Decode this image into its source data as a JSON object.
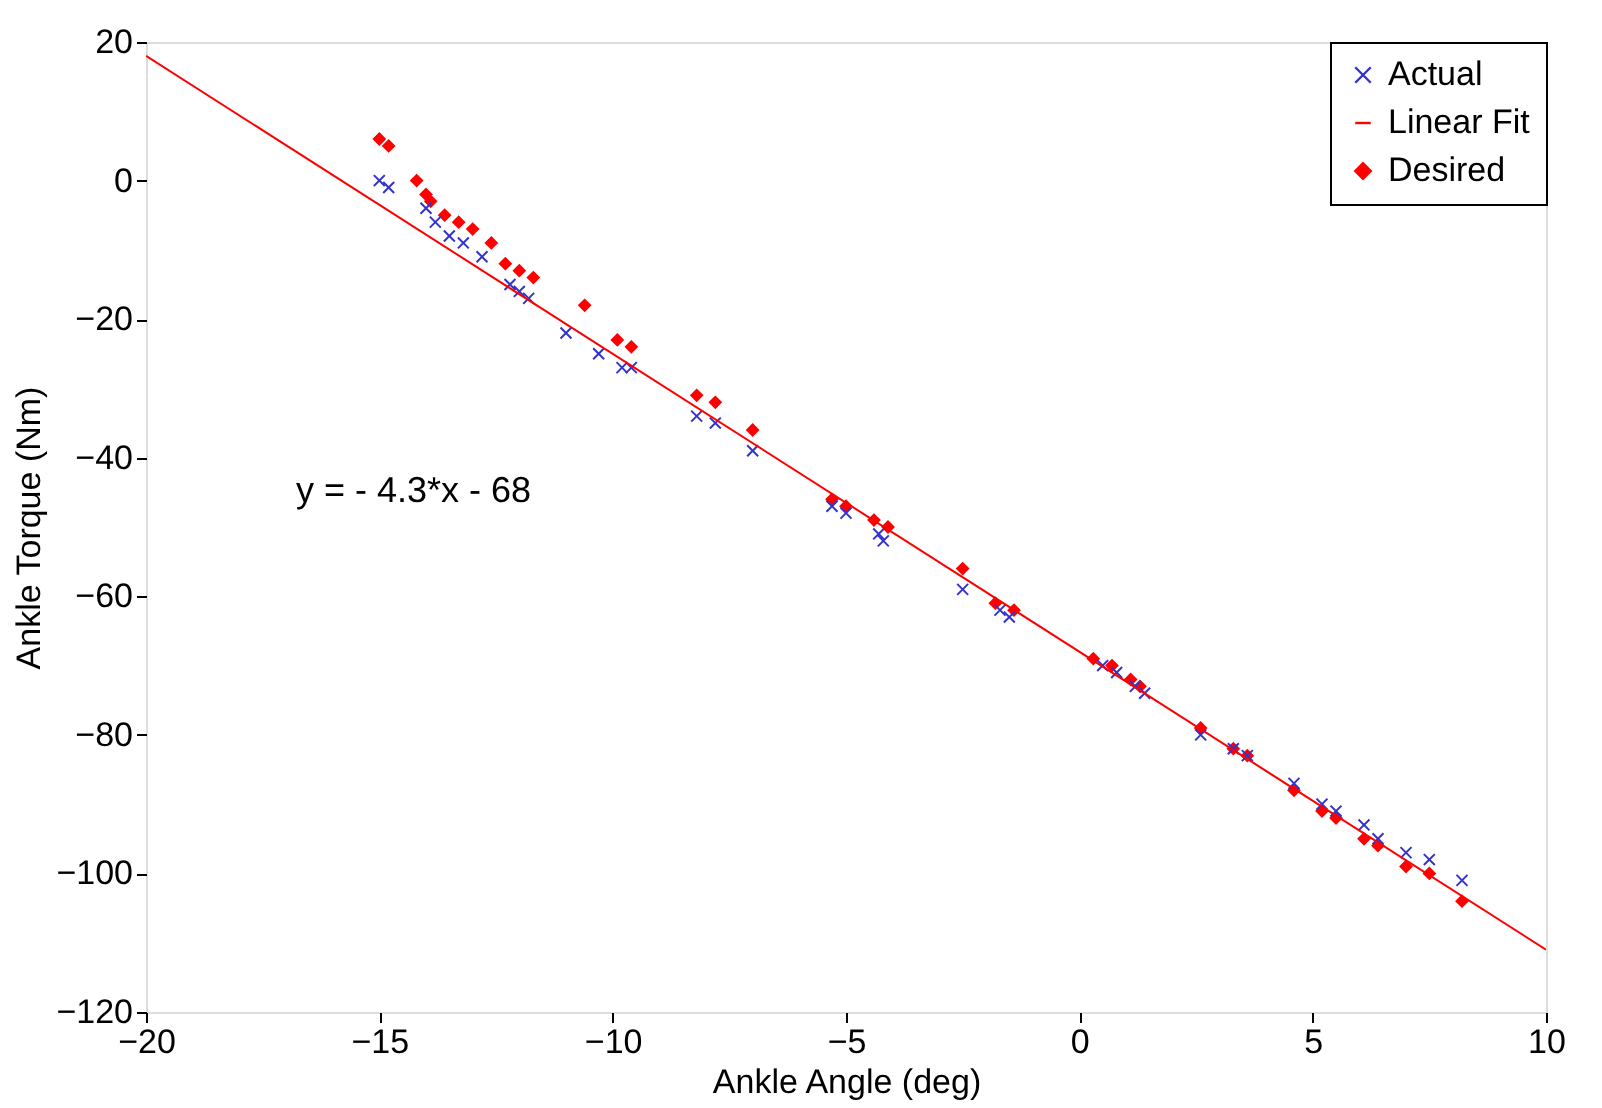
{
  "chart_data": {
    "type": "scatter",
    "xlabel": "Ankle Angle (deg)",
    "ylabel": "Ankle Torque (Nm)",
    "xlim": [
      -20,
      10
    ],
    "xticks": [
      -20,
      -15,
      -10,
      -5,
      0,
      5,
      10
    ],
    "ylim": [
      -120,
      20
    ],
    "yticks": [
      -120,
      -100,
      -80,
      -60,
      -40,
      -20,
      0,
      20
    ],
    "grid": false,
    "legend": "top right",
    "annotations": [
      "y = - 4.3*x - 68"
    ],
    "series": [
      {
        "name": "Actual",
        "marker": "cross",
        "color": "#3333cc",
        "x": [
          -15,
          -14.8,
          -14,
          -13.8,
          -13.5,
          -13.2,
          -12.8,
          -12.2,
          -12,
          -11.8,
          -11,
          -10.3,
          -9.8,
          -9.6,
          -8.2,
          -7.8,
          -7,
          -5.3,
          -5,
          -4.3,
          -4.2,
          -2.5,
          -1.7,
          -1.5,
          0.5,
          0.8,
          1.2,
          1.4,
          2.6,
          3.3,
          3.6,
          4.6,
          5.2,
          5.5,
          6.1,
          6.4,
          7,
          7.5,
          8.2
        ],
        "values": [
          0,
          -1,
          -4,
          -6,
          -8,
          -9,
          -11,
          -15,
          -16,
          -17,
          -22,
          -25,
          -27,
          -27,
          -34,
          -35,
          -39,
          -47,
          -48,
          -51,
          -52,
          -59,
          -62,
          -63,
          -70,
          -71,
          -73,
          -74,
          -80,
          -82,
          -83,
          -87,
          -90,
          -91,
          -93,
          -95,
          -97,
          -98,
          -101
        ]
      },
      {
        "name": "Linear Fit",
        "type": "line",
        "line_style": "solid",
        "color": "#ff0000",
        "x": [
          -20,
          10
        ],
        "values": [
          18,
          -111
        ]
      },
      {
        "name": "Desired",
        "marker": "diamond",
        "color": "#ff0000",
        "x": [
          -15,
          -14.8,
          -14.2,
          -14,
          -13.9,
          -13.6,
          -13.3,
          -13,
          -12.6,
          -12.3,
          -12,
          -11.7,
          -10.6,
          -9.9,
          -9.6,
          -8.2,
          -7.8,
          -7,
          -5.3,
          -5,
          -4.4,
          -4.1,
          -2.5,
          -1.8,
          -1.4,
          0.3,
          0.7,
          1.1,
          1.3,
          2.6,
          3.3,
          3.6,
          4.6,
          5.2,
          5.5,
          6.1,
          6.4,
          7,
          7.5,
          8.2
        ],
        "values": [
          6,
          5,
          0,
          -2,
          -3,
          -5,
          -6,
          -7,
          -9,
          -12,
          -13,
          -14,
          -18,
          -23,
          -24,
          -31,
          -32,
          -36,
          -46,
          -47,
          -49,
          -50,
          -56,
          -61,
          -62,
          -69,
          -70,
          -72,
          -73,
          -79,
          -82,
          -83,
          -88,
          -91,
          -92,
          -95,
          -96,
          -99,
          -100,
          -104
        ]
      }
    ]
  }
}
